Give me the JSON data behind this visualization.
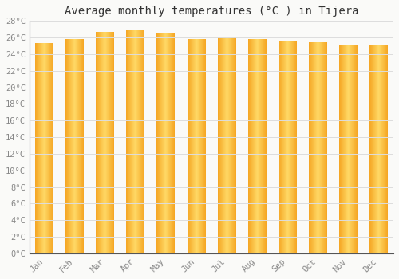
{
  "title": "Average monthly temperatures (°C ) in Tijera",
  "months": [
    "Jan",
    "Feb",
    "Mar",
    "Apr",
    "May",
    "Jun",
    "Jul",
    "Aug",
    "Sep",
    "Oct",
    "Nov",
    "Dec"
  ],
  "values": [
    25.3,
    25.8,
    26.6,
    26.8,
    26.5,
    25.8,
    26.0,
    25.8,
    25.5,
    25.4,
    25.1,
    25.0
  ],
  "bar_color_center": "#FFD966",
  "bar_color_edge": "#F5A623",
  "background_color": "#FAFAF8",
  "plot_bg_color": "#FAFAF8",
  "grid_color": "#DDDDDD",
  "ylim": [
    0,
    28
  ],
  "ytick_step": 2,
  "title_fontsize": 10,
  "tick_fontsize": 7.5,
  "font_family": "monospace",
  "bar_width": 0.6,
  "tick_color": "#888888",
  "title_color": "#333333",
  "spine_color": "#555555"
}
